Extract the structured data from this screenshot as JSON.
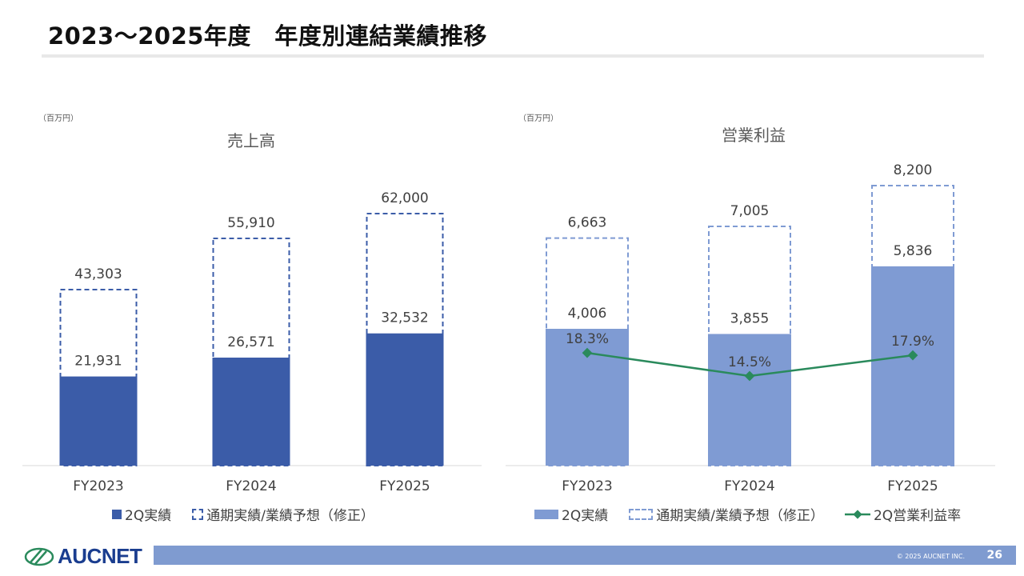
{
  "page": {
    "title": "2023～2025年度　年度別連結業績推移",
    "page_number": "26",
    "copyright": "© 2025 AUCNET INC.",
    "logo_text": "AUCNET"
  },
  "colors": {
    "sales_actual": "#3b5ca8",
    "op_actual": "#7f9bd3",
    "forecast_border": "#3b5ca8",
    "forecast_border_light": "#7f9bd3",
    "margin_line": "#2a8a5c",
    "footer_bar": "#7f9bd0"
  },
  "chart_data": [
    {
      "type": "bar",
      "title": "売上高",
      "unit": "（百万円）",
      "categories": [
        "FY2023",
        "FY2024",
        "FY2025"
      ],
      "series": [
        {
          "name": "2Q実績",
          "values": [
            21931,
            26571,
            32532
          ],
          "labels": [
            "21,931",
            "26,571",
            "32,532"
          ]
        },
        {
          "name": "通期実績/業績予想（修正）",
          "values": [
            43303,
            55910,
            62000
          ],
          "labels": [
            "43,303",
            "55,910",
            "62,000"
          ]
        }
      ],
      "ylim": [
        0,
        75000
      ],
      "legend": "bottom"
    },
    {
      "type": "bar",
      "title": "営業利益",
      "unit": "（百万円）",
      "categories": [
        "FY2023",
        "FY2024",
        "FY2025"
      ],
      "series": [
        {
          "name": "2Q実績",
          "values": [
            4006,
            3855,
            5836
          ],
          "labels": [
            "4,006",
            "3,855",
            "5,836"
          ]
        },
        {
          "name": "通期実績/業績予想（修正）",
          "values": [
            6663,
            7005,
            8200
          ],
          "labels": [
            "6,663",
            "7,005",
            "8,200"
          ]
        },
        {
          "name": "2Q営業利益率",
          "type": "line",
          "values": [
            18.3,
            14.5,
            17.9
          ],
          "labels": [
            "18.3%",
            "14.5%",
            "17.9%"
          ]
        }
      ],
      "ylim": [
        0,
        9600
      ],
      "legend": "bottom"
    }
  ]
}
